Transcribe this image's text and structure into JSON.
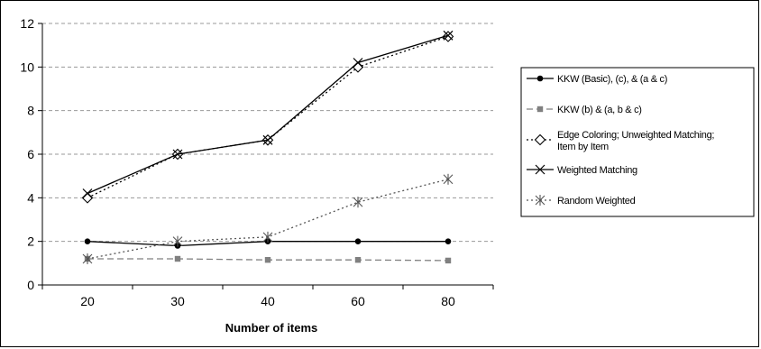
{
  "chart_data": {
    "type": "line",
    "title": "",
    "xlabel": "Number of items",
    "ylabel": "",
    "categories": [
      "20",
      "30",
      "40",
      "60",
      "80"
    ],
    "ylim": [
      0,
      12
    ],
    "yticks": [
      "0",
      "2",
      "4",
      "6",
      "8",
      "10",
      "12"
    ],
    "grid": "horizontal dashed",
    "legend_position": "right",
    "series": [
      {
        "name": "KKW (Basic), (c), & (a & c)",
        "values": [
          2.0,
          1.8,
          2.0,
          2.0,
          2.0
        ],
        "marker": "circle",
        "line": "solid",
        "color": "#000000"
      },
      {
        "name": "KKW (b) & (a, b & c)",
        "values": [
          1.2,
          1.2,
          1.15,
          1.15,
          1.12
        ],
        "marker": "square",
        "line": "dashed",
        "color": "#808080"
      },
      {
        "name": "Edge Coloring; Unweighted Matching; Item by Item",
        "values": [
          4.0,
          6.0,
          6.65,
          10.0,
          11.4
        ],
        "marker": "diamond",
        "line": "dotted",
        "color": "#000000"
      },
      {
        "name": "Weighted Matching",
        "values": [
          4.2,
          6.0,
          6.65,
          10.2,
          11.45
        ],
        "marker": "x",
        "line": "solid",
        "color": "#000000"
      },
      {
        "name": "Random Weighted",
        "values": [
          1.2,
          2.0,
          2.2,
          3.8,
          4.85
        ],
        "marker": "star",
        "line": "dotted",
        "color": "#555555"
      }
    ]
  }
}
